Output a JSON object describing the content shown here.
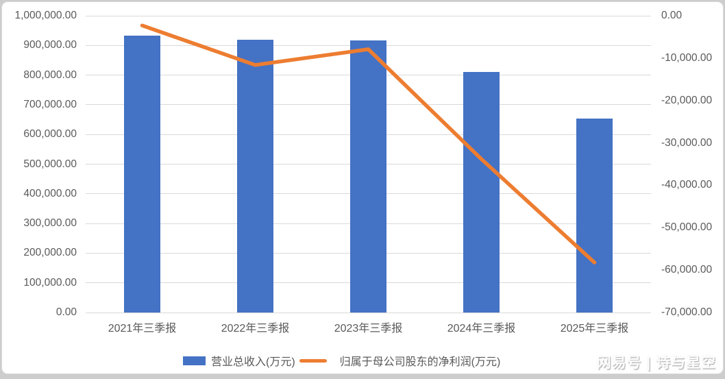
{
  "watermark": {
    "text": "网易号 | 诗与星空"
  },
  "legend": [
    {
      "label": "营业总收入(万元)",
      "type": "bar",
      "color": "#4472C4"
    },
    {
      "label": "归属于母公司股东的净利润(万元)",
      "type": "line",
      "color": "#ED7D31"
    }
  ],
  "colors": {
    "bar": "#4472C4",
    "line": "#ED7D31",
    "grid": "#d9d9d9",
    "axis_text": "#595959"
  },
  "chart_data": {
    "type": "bar",
    "categories": [
      "2021年三季报",
      "2022年三季报",
      "2023年三季报",
      "2024年三季报",
      "2025年三季报"
    ],
    "series": [
      {
        "name": "营业总收入(万元)",
        "type": "bar",
        "axis": "left",
        "color": "#4472C4",
        "values": [
          933000,
          919000,
          917000,
          811000,
          654000
        ]
      },
      {
        "name": "归属于母公司股东的净利润(万元)",
        "type": "line",
        "axis": "right",
        "color": "#ED7D31",
        "values": [
          -2300,
          -11600,
          -7900,
          -33800,
          -58200
        ]
      }
    ],
    "title": "",
    "xlabel": "",
    "ylabel": "",
    "grid": true,
    "legend_position": "bottom",
    "left_axis": {
      "min": 0,
      "max": 1000000,
      "step": 100000,
      "tick_labels": [
        "1,000,000.00",
        "900,000.00",
        "800,000.00",
        "700,000.00",
        "600,000.00",
        "500,000.00",
        "400,000.00",
        "300,000.00",
        "200,000.00",
        "100,000.00",
        "0.00"
      ]
    },
    "right_axis": {
      "min": -70000,
      "max": 0,
      "step": 10000,
      "tick_labels": [
        "0.00",
        "-10,000.00",
        "-20,000.00",
        "-30,000.00",
        "-40,000.00",
        "-50,000.00",
        "-60,000.00",
        "-70,000.00"
      ]
    }
  }
}
